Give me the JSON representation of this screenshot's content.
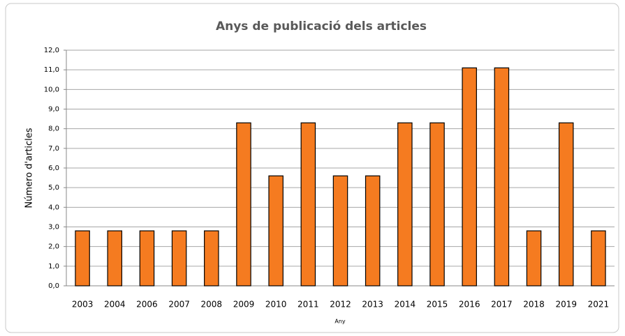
{
  "chart_data": {
    "type": "bar",
    "title": "Anys de publicació dels articles",
    "x_label": "Any",
    "y_label": "Número d'articles",
    "categories": [
      "2003",
      "2004",
      "2006",
      "2007",
      "2008",
      "2009",
      "2010",
      "2011",
      "2012",
      "2013",
      "2014",
      "2015",
      "2016",
      "2017",
      "2018",
      "2019",
      "2021"
    ],
    "values": [
      2.8,
      2.8,
      2.8,
      2.8,
      2.8,
      8.3,
      5.6,
      8.3,
      5.6,
      5.6,
      8.3,
      8.3,
      11.1,
      11.1,
      2.8,
      8.3,
      2.8
    ],
    "color": "#f57b20",
    "ylim": [
      0,
      12
    ],
    "yticks": [
      {
        "value": 0,
        "label": "0,0"
      },
      {
        "value": 1,
        "label": "1,0"
      },
      {
        "value": 2,
        "label": "2,0"
      },
      {
        "value": 3,
        "label": "3,0"
      },
      {
        "value": 4,
        "label": "4,0"
      },
      {
        "value": 5,
        "label": "5,0"
      },
      {
        "value": 6,
        "label": "6,0"
      },
      {
        "value": 7,
        "label": "7,0"
      },
      {
        "value": 8,
        "label": "8,0"
      },
      {
        "value": 9,
        "label": "9,0"
      },
      {
        "value": 10,
        "label": "10,0"
      },
      {
        "value": 11,
        "label": "11,0"
      },
      {
        "value": 12,
        "label": "12,0"
      }
    ],
    "grid": true
  }
}
